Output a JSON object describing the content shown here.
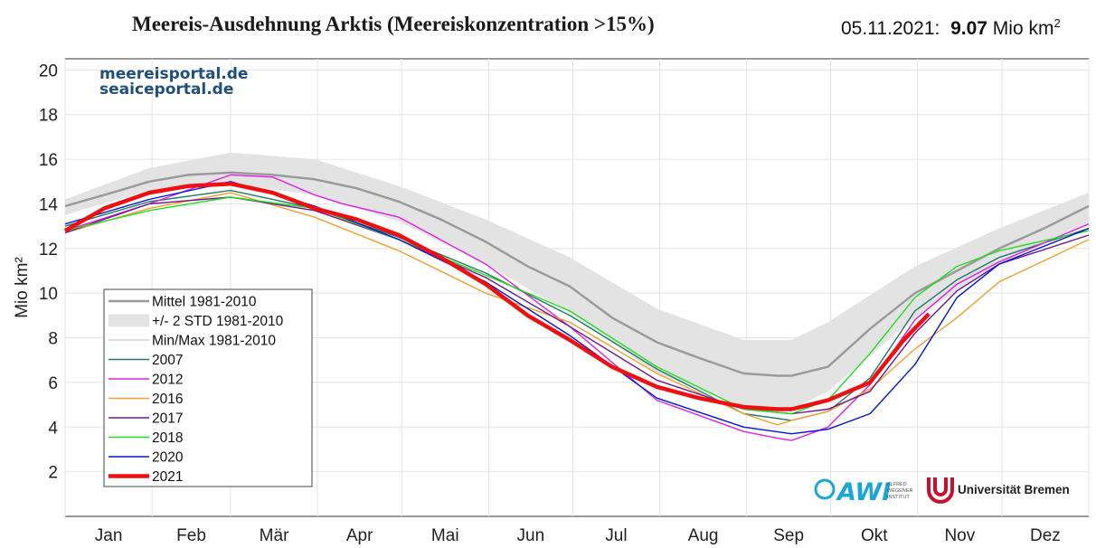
{
  "header": {
    "title": "Meereis-Ausdehnung Arktis (Meereiskonzentration >15%)",
    "date": "05.11.2021:",
    "value": "9.07",
    "unit": "Mio km",
    "unit_exp": "2"
  },
  "source": {
    "line1": "meereisportal.de",
    "line2": "seaiceportal.de"
  },
  "logos": {
    "awi_text": "AWI",
    "awi_sub": [
      "ALFRED",
      "WEGENER",
      "INSTITUT"
    ],
    "uni": "Universität Bremen"
  },
  "colors": {
    "mean": "#9b9b9b",
    "std": "#e3e3e3",
    "minmax": "#bbbbbb",
    "y2007": "#1f7a6a",
    "y2012": "#e020e0",
    "y2016": "#f0a030",
    "y2017": "#701890",
    "y2018": "#22dd22",
    "y2020": "#0018d0",
    "y2021": "#ee1010"
  },
  "chart_data": {
    "type": "line",
    "title": "Meereis-Ausdehnung Arktis (Meereiskonzentration >15%)",
    "xlabel": "",
    "ylabel": "Mio km²",
    "x_unit": "day of year",
    "xlim": [
      1,
      366
    ],
    "ylim": [
      0,
      20.5
    ],
    "yticks": [
      2,
      4,
      6,
      8,
      10,
      12,
      14,
      16,
      18,
      20
    ],
    "months": [
      "Jan",
      "Feb",
      "Mär",
      "Apr",
      "Mai",
      "Jun",
      "Jul",
      "Aug",
      "Sep",
      "Okt",
      "Nov",
      "Dez"
    ],
    "grid": true,
    "legend_position": "lower-left",
    "band": {
      "name": "+/- 2 STD 1981-2010",
      "x": [
        1,
        31,
        60,
        90,
        120,
        151,
        181,
        212,
        243,
        260,
        273,
        304,
        334,
        366
      ],
      "upper": [
        14.2,
        15.6,
        16.3,
        16.0,
        14.8,
        13.3,
        11.6,
        9.3,
        7.9,
        7.9,
        8.7,
        11.2,
        12.9,
        14.5
      ],
      "lower": [
        13.5,
        14.6,
        14.9,
        14.4,
        13.2,
        11.3,
        9.1,
        6.4,
        4.9,
        4.8,
        5.6,
        8.9,
        11.3,
        13.1
      ]
    },
    "series": [
      {
        "name": "Mittel 1981-2010",
        "x": [
          1,
          15,
          31,
          45,
          60,
          75,
          90,
          105,
          120,
          135,
          151,
          166,
          181,
          196,
          212,
          227,
          243,
          255,
          260,
          273,
          288,
          304,
          319,
          334,
          350,
          366
        ],
        "y": [
          13.9,
          14.4,
          15.0,
          15.3,
          15.4,
          15.3,
          15.1,
          14.7,
          14.1,
          13.3,
          12.3,
          11.2,
          10.3,
          8.9,
          7.8,
          7.1,
          6.4,
          6.3,
          6.3,
          6.7,
          8.4,
          10.0,
          11.0,
          12.0,
          12.9,
          13.9
        ]
      },
      {
        "name": "Min/Max 1981-2010",
        "x": [],
        "y": []
      },
      {
        "name": "2007",
        "x": [
          1,
          31,
          60,
          90,
          120,
          151,
          181,
          212,
          243,
          260,
          273,
          288,
          304,
          319,
          334,
          366
        ],
        "y": [
          13.0,
          14.1,
          14.6,
          13.8,
          12.5,
          10.9,
          9.0,
          6.6,
          4.6,
          4.3,
          4.7,
          6.2,
          9.2,
          10.6,
          11.6,
          12.9
        ]
      },
      {
        "name": "2012",
        "x": [
          1,
          31,
          60,
          75,
          90,
          100,
          120,
          151,
          181,
          212,
          243,
          255,
          260,
          273,
          288,
          304,
          319,
          334,
          366
        ],
        "y": [
          12.8,
          14.0,
          15.3,
          15.2,
          14.4,
          14.0,
          13.4,
          11.3,
          8.5,
          5.2,
          3.8,
          3.5,
          3.4,
          4.0,
          5.9,
          8.8,
          10.4,
          11.4,
          13.1
        ]
      },
      {
        "name": "2016",
        "x": [
          1,
          31,
          60,
          90,
          120,
          151,
          181,
          212,
          243,
          255,
          260,
          273,
          288,
          304,
          319,
          334,
          366
        ],
        "y": [
          12.7,
          13.8,
          14.5,
          13.4,
          11.9,
          10.0,
          8.7,
          6.4,
          4.6,
          4.1,
          4.3,
          4.7,
          5.7,
          7.5,
          8.9,
          10.5,
          12.4
        ]
      },
      {
        "name": "2017",
        "x": [
          1,
          31,
          60,
          90,
          120,
          151,
          181,
          212,
          243,
          260,
          273,
          288,
          304,
          319,
          334,
          366
        ],
        "y": [
          12.7,
          14.0,
          14.3,
          13.7,
          12.4,
          10.7,
          8.5,
          6.1,
          4.8,
          4.6,
          4.8,
          5.6,
          8.2,
          10.1,
          11.3,
          12.6
        ]
      },
      {
        "name": "2018",
        "x": [
          1,
          31,
          60,
          90,
          120,
          151,
          181,
          212,
          243,
          260,
          273,
          288,
          304,
          319,
          334,
          366
        ],
        "y": [
          12.8,
          13.7,
          14.3,
          13.8,
          12.4,
          10.8,
          9.2,
          6.7,
          4.8,
          4.6,
          5.2,
          7.3,
          9.8,
          11.2,
          11.9,
          12.8
        ]
      },
      {
        "name": "2020",
        "x": [
          1,
          31,
          60,
          90,
          120,
          151,
          181,
          212,
          243,
          260,
          273,
          288,
          304,
          319,
          334,
          366
        ],
        "y": [
          13.1,
          14.2,
          15.0,
          13.9,
          12.4,
          10.5,
          8.1,
          5.3,
          4.0,
          3.7,
          3.9,
          4.6,
          6.8,
          9.8,
          11.3,
          12.9
        ]
      },
      {
        "name": "2021",
        "x": [
          1,
          15,
          31,
          45,
          60,
          75,
          90,
          105,
          120,
          135,
          151,
          166,
          181,
          196,
          212,
          227,
          243,
          255,
          260,
          273,
          288,
          300,
          309
        ],
        "y": [
          12.8,
          13.8,
          14.5,
          14.8,
          14.9,
          14.5,
          13.8,
          13.3,
          12.6,
          11.6,
          10.4,
          9.0,
          7.9,
          6.7,
          5.8,
          5.3,
          4.9,
          4.8,
          4.8,
          5.2,
          6.0,
          7.9,
          9.07
        ]
      }
    ]
  }
}
